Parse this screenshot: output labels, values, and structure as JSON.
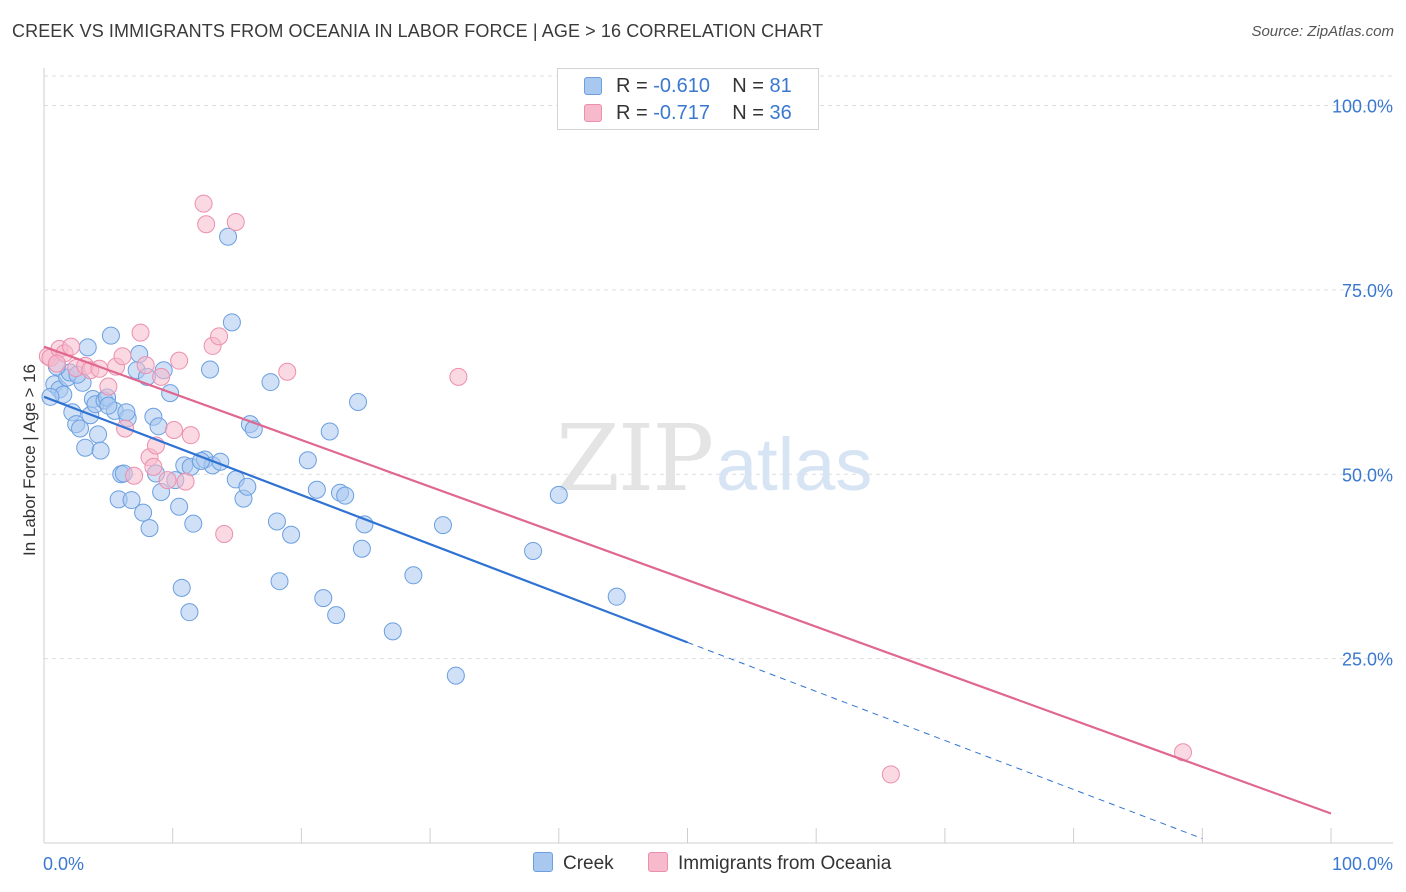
{
  "title": "CREEK VS IMMIGRANTS FROM OCEANIA IN LABOR FORCE | AGE > 16 CORRELATION CHART",
  "source": "Source: ZipAtlas.com",
  "watermark": {
    "zip": "ZIP",
    "atlas": "atlas"
  },
  "legend": {
    "rows": [
      {
        "r_label": "R =",
        "r_value": "-0.610",
        "n_label": "N =",
        "n_value": "81"
      },
      {
        "r_label": "R =",
        "r_value": "-0.717",
        "n_label": "N =",
        "n_value": "36"
      }
    ]
  },
  "colors": {
    "creek_fill": "#a9c8f0",
    "creek_stroke": "#6b9fe0",
    "creek_line": "#2f72d2",
    "oceania_fill": "#f7b9cc",
    "oceania_stroke": "#ec8fae",
    "oceania_line": "#e06890",
    "grid": "#dddddd",
    "tick_label": "#3a78d0"
  },
  "chart_data": {
    "type": "scatter",
    "title": "CREEK VS IMMIGRANTS FROM OCEANIA IN LABOR FORCE | AGE > 16 CORRELATION CHART",
    "xlabel": "",
    "ylabel": "In Labor Force | Age > 16",
    "xlim": [
      0,
      100
    ],
    "ylim": [
      0,
      104
    ],
    "x_tick_labels": [
      "0.0%",
      "100.0%"
    ],
    "y_ticks": [
      25,
      50,
      75,
      100
    ],
    "y_tick_labels": [
      "25.0%",
      "50.0%",
      "75.0%",
      "100.0%"
    ],
    "grid": "horizontal dashed",
    "legend_position": "top-center",
    "series": [
      {
        "name": "Creek",
        "points": [
          [
            0.8,
            62.2
          ],
          [
            1.2,
            61.5
          ],
          [
            1.5,
            60.8
          ],
          [
            1.8,
            63.1
          ],
          [
            2.0,
            63.8
          ],
          [
            2.2,
            58.4
          ],
          [
            2.5,
            56.8
          ],
          [
            2.8,
            56.2
          ],
          [
            3.0,
            62.4
          ],
          [
            3.2,
            53.6
          ],
          [
            3.4,
            67.2
          ],
          [
            3.6,
            58.0
          ],
          [
            3.8,
            60.2
          ],
          [
            4.0,
            59.5
          ],
          [
            4.2,
            55.4
          ],
          [
            4.4,
            53.2
          ],
          [
            4.7,
            60.0
          ],
          [
            4.9,
            60.4
          ],
          [
            5.2,
            68.8
          ],
          [
            5.5,
            58.6
          ],
          [
            5.8,
            46.6
          ],
          [
            6.0,
            50.0
          ],
          [
            6.2,
            50.1
          ],
          [
            6.5,
            57.6
          ],
          [
            6.4,
            58.4
          ],
          [
            6.8,
            46.5
          ],
          [
            7.2,
            64.1
          ],
          [
            7.4,
            66.3
          ],
          [
            7.7,
            44.8
          ],
          [
            8.0,
            63.2
          ],
          [
            8.2,
            42.7
          ],
          [
            8.5,
            57.8
          ],
          [
            8.7,
            50.1
          ],
          [
            8.9,
            56.5
          ],
          [
            9.1,
            47.6
          ],
          [
            9.3,
            64.1
          ],
          [
            9.8,
            61.0
          ],
          [
            10.2,
            49.2
          ],
          [
            10.5,
            45.6
          ],
          [
            10.7,
            34.6
          ],
          [
            10.9,
            51.2
          ],
          [
            11.3,
            31.3
          ],
          [
            11.4,
            51.0
          ],
          [
            11.6,
            43.3
          ],
          [
            12.5,
            52.0
          ],
          [
            12.9,
            64.2
          ],
          [
            13.1,
            51.2
          ],
          [
            13.7,
            51.7
          ],
          [
            14.3,
            82.2
          ],
          [
            14.6,
            70.6
          ],
          [
            14.9,
            49.3
          ],
          [
            15.5,
            46.7
          ],
          [
            15.8,
            48.3
          ],
          [
            16.0,
            56.8
          ],
          [
            16.3,
            56.1
          ],
          [
            17.6,
            62.5
          ],
          [
            18.1,
            43.6
          ],
          [
            18.3,
            35.5
          ],
          [
            19.2,
            41.8
          ],
          [
            20.5,
            51.9
          ],
          [
            21.2,
            47.9
          ],
          [
            21.7,
            33.2
          ],
          [
            22.7,
            30.9
          ],
          [
            23.0,
            47.5
          ],
          [
            23.4,
            47.1
          ],
          [
            22.2,
            55.8
          ],
          [
            24.7,
            39.9
          ],
          [
            24.9,
            43.2
          ],
          [
            24.4,
            59.8
          ],
          [
            27.1,
            28.7
          ],
          [
            28.7,
            36.3
          ],
          [
            31.0,
            43.1
          ],
          [
            32.0,
            22.7
          ],
          [
            38.0,
            39.6
          ],
          [
            40.0,
            47.2
          ],
          [
            44.5,
            33.4
          ],
          [
            0.5,
            60.5
          ],
          [
            2.6,
            63.5
          ],
          [
            1.0,
            64.6
          ],
          [
            5.0,
            59.3
          ],
          [
            12.2,
            51.8
          ]
        ],
        "trend": {
          "x0": 0,
          "y0": 60.5,
          "x1": 50,
          "y1": 27.2,
          "dash_x1": 90,
          "dash_y1": 0.6
        }
      },
      {
        "name": "Immigrants from Oceania",
        "points": [
          [
            0.3,
            66.0
          ],
          [
            0.5,
            65.8
          ],
          [
            1.2,
            67.0
          ],
          [
            1.6,
            66.4
          ],
          [
            2.1,
            67.3
          ],
          [
            2.5,
            64.4
          ],
          [
            3.2,
            64.7
          ],
          [
            3.6,
            64.1
          ],
          [
            4.3,
            64.3
          ],
          [
            5.0,
            61.9
          ],
          [
            5.6,
            64.6
          ],
          [
            6.1,
            66.0
          ],
          [
            6.3,
            56.2
          ],
          [
            7.0,
            49.8
          ],
          [
            7.5,
            69.2
          ],
          [
            7.9,
            64.8
          ],
          [
            8.2,
            52.3
          ],
          [
            8.5,
            51.0
          ],
          [
            8.7,
            53.9
          ],
          [
            9.1,
            63.2
          ],
          [
            9.6,
            49.2
          ],
          [
            10.1,
            56.0
          ],
          [
            10.5,
            65.4
          ],
          [
            11.0,
            49.0
          ],
          [
            11.4,
            55.3
          ],
          [
            12.4,
            86.7
          ],
          [
            12.6,
            83.9
          ],
          [
            13.1,
            67.4
          ],
          [
            13.6,
            68.7
          ],
          [
            14.0,
            41.9
          ],
          [
            14.9,
            84.2
          ],
          [
            18.9,
            63.9
          ],
          [
            32.2,
            63.2
          ],
          [
            65.8,
            9.3
          ],
          [
            88.5,
            12.3
          ],
          [
            1.0,
            65.0
          ]
        ],
        "trend": {
          "x0": 0,
          "y0": 67.3,
          "x1": 100,
          "y1": 4.0
        }
      }
    ]
  }
}
